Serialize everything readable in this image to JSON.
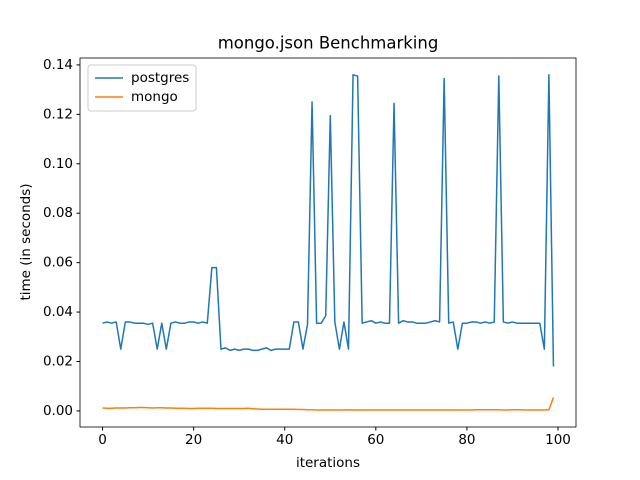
{
  "chart_data": {
    "type": "line",
    "title": "mongo.json Benchmarking",
    "x_label": "iterations",
    "y_label": "time (in seconds)",
    "x": [
      0,
      1,
      2,
      3,
      4,
      5,
      6,
      7,
      8,
      9,
      10,
      11,
      12,
      13,
      14,
      15,
      16,
      17,
      18,
      19,
      20,
      21,
      22,
      23,
      24,
      25,
      26,
      27,
      28,
      29,
      30,
      31,
      32,
      33,
      34,
      35,
      36,
      37,
      38,
      39,
      40,
      41,
      42,
      43,
      44,
      45,
      46,
      47,
      48,
      49,
      50,
      51,
      52,
      53,
      54,
      55,
      56,
      57,
      58,
      59,
      60,
      61,
      62,
      63,
      64,
      65,
      66,
      67,
      68,
      69,
      70,
      71,
      72,
      73,
      74,
      75,
      76,
      77,
      78,
      79,
      80,
      81,
      82,
      83,
      84,
      85,
      86,
      87,
      88,
      89,
      90,
      91,
      92,
      93,
      94,
      95,
      96,
      97,
      98,
      99
    ],
    "series": [
      {
        "name": "postgres",
        "color": "#1f77b4",
        "values": [
          0.0355,
          0.036,
          0.0355,
          0.036,
          0.025,
          0.036,
          0.036,
          0.0355,
          0.0355,
          0.0355,
          0.035,
          0.0355,
          0.025,
          0.0355,
          0.025,
          0.0355,
          0.036,
          0.0355,
          0.0355,
          0.036,
          0.036,
          0.0355,
          0.036,
          0.0355,
          0.058,
          0.058,
          0.025,
          0.0255,
          0.0245,
          0.025,
          0.0245,
          0.025,
          0.025,
          0.0245,
          0.0245,
          0.025,
          0.0255,
          0.0245,
          0.025,
          0.025,
          0.025,
          0.025,
          0.036,
          0.036,
          0.025,
          0.035,
          0.125,
          0.0355,
          0.0355,
          0.0385,
          0.1195,
          0.036,
          0.025,
          0.036,
          0.025,
          0.136,
          0.1355,
          0.0355,
          0.036,
          0.0365,
          0.0355,
          0.036,
          0.0355,
          0.0355,
          0.1245,
          0.0355,
          0.0365,
          0.036,
          0.036,
          0.0355,
          0.0355,
          0.0355,
          0.036,
          0.0365,
          0.036,
          0.1345,
          0.0355,
          0.036,
          0.025,
          0.0355,
          0.0355,
          0.036,
          0.036,
          0.0355,
          0.036,
          0.0355,
          0.036,
          0.1355,
          0.036,
          0.0355,
          0.036,
          0.0355,
          0.0355,
          0.0355,
          0.0355,
          0.0355,
          0.0355,
          0.025,
          0.136,
          0.018
        ]
      },
      {
        "name": "mongo",
        "color": "#ff7f0e",
        "values": [
          0.0012,
          0.0011,
          0.0011,
          0.0012,
          0.0012,
          0.0012,
          0.0013,
          0.0013,
          0.0014,
          0.0014,
          0.0013,
          0.0012,
          0.0013,
          0.0013,
          0.0012,
          0.0012,
          0.0011,
          0.0011,
          0.0011,
          0.001,
          0.001,
          0.0011,
          0.0011,
          0.0011,
          0.0011,
          0.001,
          0.001,
          0.001,
          0.001,
          0.001,
          0.001,
          0.001,
          0.0011,
          0.0009,
          0.0008,
          0.0007,
          0.0007,
          0.0007,
          0.0007,
          0.0007,
          0.0007,
          0.0007,
          0.0007,
          0.0006,
          0.0006,
          0.0005,
          0.0005,
          0.0004,
          0.0004,
          0.0004,
          0.0004,
          0.0004,
          0.0004,
          0.0004,
          0.0005,
          0.0004,
          0.0004,
          0.0004,
          0.0004,
          0.0004,
          0.0004,
          0.0004,
          0.0004,
          0.0004,
          0.0004,
          0.0004,
          0.0004,
          0.0004,
          0.0004,
          0.0004,
          0.0004,
          0.0004,
          0.0004,
          0.0004,
          0.0004,
          0.0004,
          0.0004,
          0.0004,
          0.0004,
          0.0004,
          0.0004,
          0.0004,
          0.0005,
          0.0005,
          0.0005,
          0.0005,
          0.0005,
          0.0005,
          0.0004,
          0.0004,
          0.0005,
          0.0005,
          0.0005,
          0.0004,
          0.0004,
          0.0004,
          0.0004,
          0.0004,
          0.0005,
          0.0055
        ]
      }
    ],
    "xlim": [
      -4.95,
      103.95
    ],
    "xticks": [
      0,
      20,
      40,
      60,
      80,
      100
    ],
    "ylim": [
      -0.0065,
      0.1428
    ],
    "yticks": [
      {
        "value": 0,
        "label": "0.00"
      },
      {
        "value": 0.02,
        "label": "0.02"
      },
      {
        "value": 0.04,
        "label": "0.04"
      },
      {
        "value": 0.06,
        "label": "0.06"
      },
      {
        "value": 0.08,
        "label": "0.08"
      },
      {
        "value": 0.1,
        "label": "0.10"
      },
      {
        "value": 0.12,
        "label": "0.12"
      },
      {
        "value": 0.14,
        "label": "0.14"
      }
    ],
    "grid": false,
    "legend": "upper-left"
  }
}
